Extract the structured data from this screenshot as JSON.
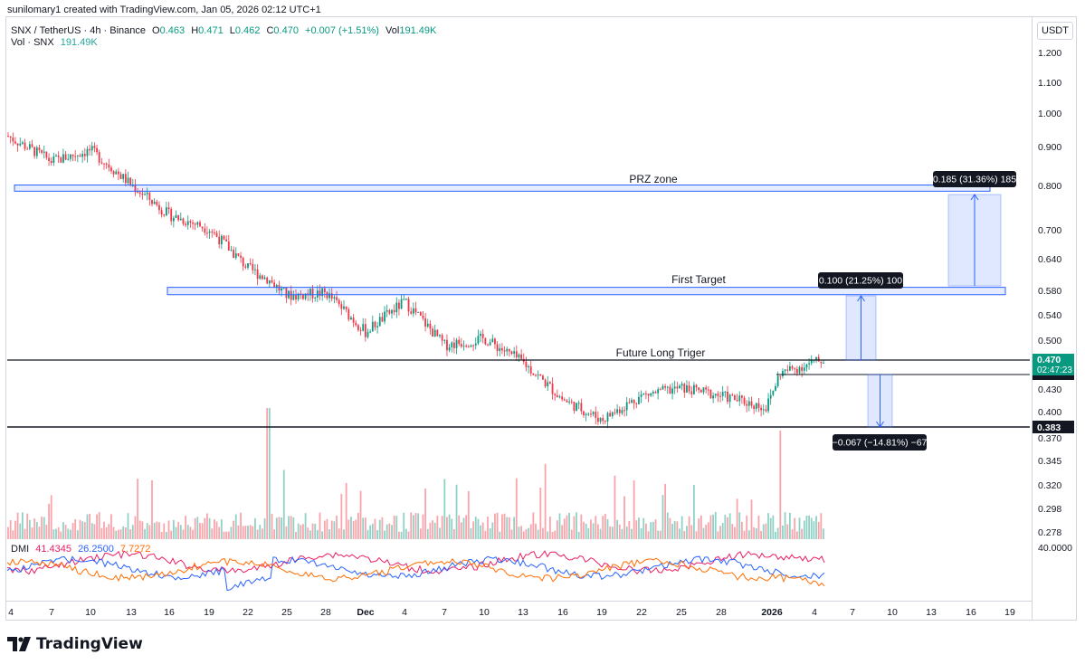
{
  "header": {
    "caption": "sunilomary1 created with TradingView.com, Jan 05, 2026 02:12 UTC+1"
  },
  "legend": {
    "symbol": "SNX / TetherUS · 4h · Binance",
    "o_label": "O",
    "o_value": "0.463",
    "h_label": "H",
    "h_value": "0.471",
    "l_label": "L",
    "l_value": "0.462",
    "c_label": "C",
    "c_value": "0.470",
    "change": "+0.007 (+1.51%)",
    "vol_label": "Vol",
    "vol_value": "191.49K",
    "vol_line_label": "Vol · SNX",
    "vol_line_value": "191.49K"
  },
  "dmi": {
    "label": "DMI",
    "plus": "41.4345",
    "minus": "26.2500",
    "adx": "7.7272",
    "level_label": "40.0000"
  },
  "price_axis": {
    "currency": "USDT",
    "ticks": [
      "1.200",
      "1.100",
      "1.000",
      "0.900",
      "0.800",
      "0.700",
      "0.640",
      "0.580",
      "0.540",
      "0.500",
      "0.430",
      "0.400",
      "0.370",
      "0.345",
      "0.320",
      "0.298",
      "0.278"
    ],
    "last_price": "0.470",
    "countdown": "02:47:23",
    "support_price": "0.383"
  },
  "time_axis": {
    "ticks": [
      "4",
      "7",
      "10",
      "13",
      "16",
      "19",
      "22",
      "25",
      "28",
      "Dec",
      "4",
      "7",
      "10",
      "13",
      "16",
      "19",
      "22",
      "25",
      "28",
      "2026",
      "4",
      "7",
      "10",
      "13",
      "16",
      "19"
    ]
  },
  "annotations": {
    "prz_label": "PRZ zone",
    "first_target_label": "First Target",
    "trigger_label": "Future Long Triger",
    "measure_prz": "0.185 (31.36%) 185",
    "measure_first": "0.100 (21.25%) 100",
    "measure_down": "−0.067 (−14.81%) −67"
  },
  "colors": {
    "up": "#089981",
    "down": "#f23645",
    "zone": "#2962ff",
    "adx": "#ff6d00",
    "plus_di": "#e91e63",
    "minus_di": "#2962ff"
  },
  "chart_data": {
    "type": "candlestick",
    "symbol": "SNX/USDT",
    "interval": "4h",
    "ohlc_last": {
      "open": 0.463,
      "high": 0.471,
      "low": 0.462,
      "close": 0.47
    },
    "approx_close_path": [
      {
        "x": "Nov 4",
        "y": 0.93
      },
      {
        "x": "Nov 7",
        "y": 0.86
      },
      {
        "x": "Nov 10",
        "y": 0.89
      },
      {
        "x": "Nov 13",
        "y": 0.8
      },
      {
        "x": "Nov 16",
        "y": 0.73
      },
      {
        "x": "Nov 19",
        "y": 0.7
      },
      {
        "x": "Nov 22",
        "y": 0.62
      },
      {
        "x": "Nov 24",
        "y": 0.6
      },
      {
        "x": "Nov 25",
        "y": 0.57
      },
      {
        "x": "Nov 28",
        "y": 0.575
      },
      {
        "x": "Dec 1",
        "y": 0.51
      },
      {
        "x": "Dec 4",
        "y": 0.56
      },
      {
        "x": "Dec 7",
        "y": 0.49
      },
      {
        "x": "Dec 10",
        "y": 0.5
      },
      {
        "x": "Dec 13",
        "y": 0.465
      },
      {
        "x": "Dec 16",
        "y": 0.415
      },
      {
        "x": "Dec 19",
        "y": 0.39
      },
      {
        "x": "Dec 22",
        "y": 0.42
      },
      {
        "x": "Dec 25",
        "y": 0.43
      },
      {
        "x": "Dec 28",
        "y": 0.42
      },
      {
        "x": "Jan 1",
        "y": 0.405
      },
      {
        "x": "Jan 2",
        "y": 0.45
      },
      {
        "x": "Jan 5",
        "y": 0.47
      }
    ],
    "zones": [
      {
        "name": "PRZ zone",
        "low": 0.785,
        "high": 0.8
      },
      {
        "name": "First Target",
        "low": 0.572,
        "high": 0.585
      }
    ],
    "levels": [
      {
        "name": "Future Long Triger",
        "price": 0.47
      },
      {
        "name": "support",
        "price": 0.383
      }
    ],
    "measures": [
      {
        "text": "0.185 (31.36%) 185",
        "delta": 0.185
      },
      {
        "text": "0.100 (21.25%) 100",
        "delta": 0.1
      },
      {
        "text": "−0.067 (−14.81%) −67",
        "delta": -0.067
      }
    ],
    "ylim": [
      0.27,
      1.25
    ],
    "y_scale": "log"
  }
}
